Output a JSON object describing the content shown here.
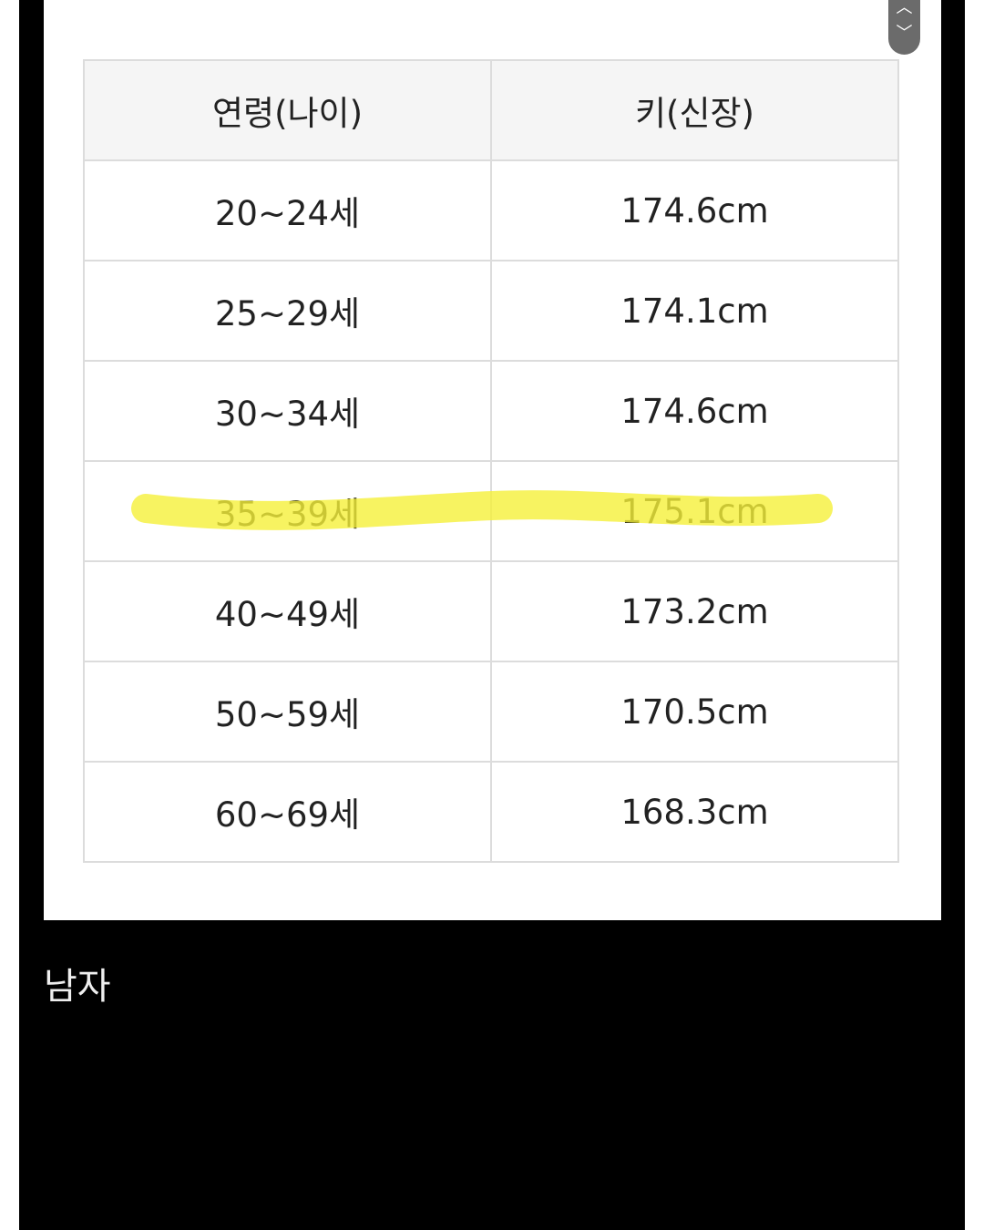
{
  "table": {
    "headers": [
      "연령(나이)",
      "키(신장)"
    ],
    "rows": [
      [
        "20~24세",
        "174.6cm"
      ],
      [
        "25~29세",
        "174.1cm"
      ],
      [
        "30~34세",
        "174.6cm"
      ],
      [
        "35~39세",
        "175.1cm"
      ],
      [
        "40~49세",
        "173.2cm"
      ],
      [
        "50~59세",
        "170.5cm"
      ],
      [
        "60~69세",
        "168.3cm"
      ]
    ],
    "highlighted_row": 3,
    "highlight_color": "#f5f03a"
  },
  "caption": "남자",
  "scroll_buttons": {
    "up_icon": "chevron-up-icon",
    "down_icon": "chevron-down-icon"
  }
}
